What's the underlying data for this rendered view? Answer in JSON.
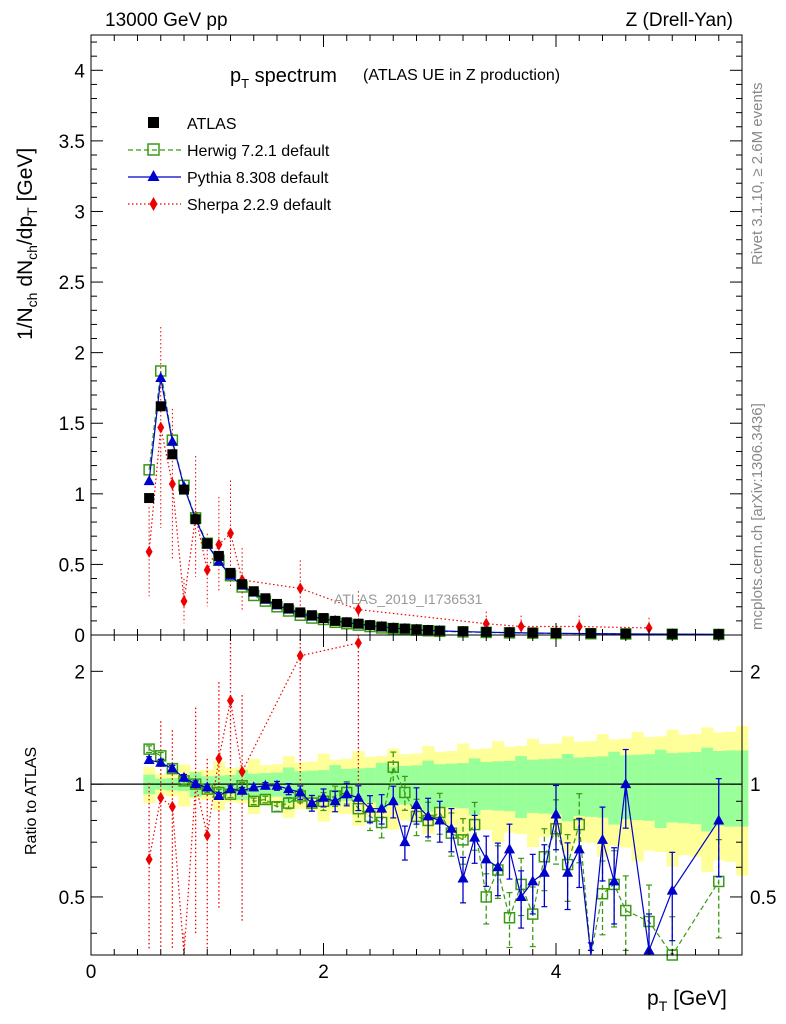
{
  "header": {
    "left": "13000 GeV pp",
    "right": "Z (Drell-Yan)"
  },
  "title": {
    "main": "p",
    "main_sub": "T",
    "main_rest": " spectrum",
    "small": "(ATLAS UE in Z production)"
  },
  "side_text": {
    "rivet": "Rivet 3.1.10, ≥ 2.6M events",
    "mcplots": "mcplots.cern.ch [arXiv:1306.3436]"
  },
  "analysis_id": "ATLAS_2019_I1736531",
  "ylabel_main": {
    "p1": "1/N",
    "s1": "ch",
    "p2": " dN",
    "s2": "ch",
    "p3": "/dp",
    "s3": "T",
    "p4": " [GeV]"
  },
  "ylabel_ratio": "Ratio to ATLAS",
  "xlabel": {
    "p": "p",
    "s": "T",
    "rest": " [GeV]"
  },
  "legend": [
    {
      "name": "ATLAS"
    },
    {
      "name": "Herwig 7.2.1 default"
    },
    {
      "name": "Pythia 8.308 default"
    },
    {
      "name": "Sherpa 2.2.9 default"
    }
  ],
  "axis_ticks": {
    "main_y": [
      "0",
      "0.5",
      "1",
      "1.5",
      "2",
      "2.5",
      "3",
      "3.5",
      "4"
    ],
    "ratio_y": [
      "0.5",
      "1",
      "2"
    ],
    "x": [
      "0",
      "2",
      "4"
    ]
  },
  "chart_data": {
    "type": "line",
    "colors": {
      "ATLAS": "#000000",
      "Herwig": "#3a9a14",
      "Pythia": "#0000cc",
      "Sherpa": "#ee0000",
      "band_inner": "#99ff99",
      "band_outer": "#ffff99"
    },
    "main": {
      "xlim": [
        0,
        5.6
      ],
      "ylim": [
        0,
        4.25
      ],
      "series": [
        {
          "name": "ATLAS",
          "x": [
            0.5,
            0.6,
            0.7,
            0.8,
            0.9,
            1.0,
            1.1,
            1.2,
            1.3,
            1.4,
            1.5,
            1.6,
            1.7,
            1.8,
            1.9,
            2.0,
            2.1,
            2.2,
            2.3,
            2.4,
            2.5,
            2.6,
            2.7,
            2.8,
            2.9,
            3.0,
            3.2,
            3.4,
            3.6,
            3.8,
            4.0,
            4.3,
            4.6,
            5.0,
            5.4
          ],
          "y": [
            0.97,
            1.62,
            1.28,
            1.03,
            0.82,
            0.65,
            0.56,
            0.44,
            0.36,
            0.31,
            0.26,
            0.22,
            0.19,
            0.16,
            0.14,
            0.12,
            0.1,
            0.09,
            0.08,
            0.07,
            0.06,
            0.05,
            0.045,
            0.04,
            0.035,
            0.03,
            0.026,
            0.022,
            0.019,
            0.016,
            0.014,
            0.012,
            0.01,
            0.008,
            0.006
          ]
        },
        {
          "name": "Herwig 7.2.1 default",
          "x": [
            0.5,
            0.6,
            0.7,
            0.8,
            0.9,
            1.0,
            1.1,
            1.2,
            1.3,
            1.4,
            1.5,
            1.6,
            1.7,
            1.8,
            1.9,
            2.0,
            2.1,
            2.2,
            2.3,
            2.4,
            2.5,
            2.6,
            2.7,
            2.8,
            2.9,
            3.0,
            3.2,
            3.4,
            3.6,
            3.8,
            4.0,
            4.3,
            4.6,
            5.0,
            5.4
          ],
          "y": [
            1.17,
            1.87,
            1.38,
            1.06,
            0.83,
            0.65,
            0.53,
            0.42,
            0.34,
            0.28,
            0.24,
            0.2,
            0.17,
            0.14,
            0.12,
            0.11,
            0.09,
            0.08,
            0.07,
            0.06,
            0.05,
            0.045,
            0.04,
            0.035,
            0.03,
            0.026,
            0.022,
            0.018,
            0.015,
            0.013,
            0.011,
            0.009,
            0.007,
            0.005,
            0.004
          ]
        },
        {
          "name": "Pythia 8.308 default",
          "x": [
            0.5,
            0.6,
            0.7,
            0.8,
            0.9,
            1.0,
            1.1,
            1.2,
            1.3,
            1.4,
            1.5,
            1.6,
            1.7,
            1.8,
            1.9,
            2.0,
            2.1,
            2.2,
            2.3,
            2.4,
            2.5,
            2.6,
            2.7,
            2.8,
            2.9,
            3.0,
            3.2,
            3.4,
            3.6,
            3.8,
            4.0,
            4.3,
            4.6,
            5.0,
            5.4
          ],
          "y": [
            1.09,
            1.82,
            1.37,
            1.05,
            0.82,
            0.64,
            0.52,
            0.42,
            0.35,
            0.3,
            0.25,
            0.21,
            0.18,
            0.155,
            0.13,
            0.115,
            0.1,
            0.088,
            0.078,
            0.068,
            0.058,
            0.05,
            0.044,
            0.038,
            0.033,
            0.029,
            0.024,
            0.02,
            0.017,
            0.014,
            0.012,
            0.01,
            0.008,
            0.006,
            0.005
          ]
        },
        {
          "name": "Sherpa 2.2.9 default",
          "x": [
            0.5,
            0.6,
            0.7,
            0.8,
            0.9,
            1.0,
            1.1,
            1.2,
            1.3,
            1.8,
            2.3,
            3.4,
            3.7,
            4.2,
            4.8
          ],
          "y": [
            0.59,
            1.47,
            1.07,
            0.24,
            0.84,
            0.46,
            0.64,
            0.72,
            0.39,
            0.33,
            0.18,
            0.08,
            0.06,
            0.06,
            0.05
          ]
        }
      ]
    },
    "ratio": {
      "xlim": [
        0,
        5.6
      ],
      "ylim": [
        0.35,
        2.5
      ],
      "series": [
        {
          "name": "Herwig 7.2.1 default",
          "x": [
            0.5,
            0.6,
            0.7,
            0.8,
            0.9,
            1.0,
            1.1,
            1.2,
            1.3,
            1.4,
            1.5,
            1.6,
            1.7,
            1.8,
            1.9,
            2.0,
            2.1,
            2.2,
            2.3,
            2.4,
            2.5,
            2.6,
            2.7,
            2.8,
            2.9,
            3.0,
            3.1,
            3.2,
            3.3,
            3.4,
            3.5,
            3.6,
            3.7,
            3.8,
            3.9,
            4.0,
            4.1,
            4.2,
            4.3,
            4.4,
            4.5,
            4.6,
            4.8,
            5.0,
            5.4
          ],
          "y": [
            1.24,
            1.19,
            1.1,
            1.02,
            1.0,
            0.97,
            0.95,
            0.94,
            0.99,
            0.9,
            0.91,
            0.87,
            0.89,
            0.93,
            0.89,
            0.9,
            0.93,
            0.95,
            0.86,
            0.82,
            0.79,
            1.11,
            0.95,
            0.82,
            0.8,
            0.84,
            0.74,
            0.71,
            0.78,
            0.5,
            0.59,
            0.44,
            0.54,
            0.45,
            0.64,
            0.76,
            0.61,
            0.78,
            0.31,
            0.51,
            0.54,
            0.46,
            0.43,
            0.35,
            0.55
          ]
        },
        {
          "name": "Pythia 8.308 default",
          "x": [
            0.5,
            0.6,
            0.7,
            0.8,
            0.9,
            1.0,
            1.1,
            1.2,
            1.3,
            1.4,
            1.5,
            1.6,
            1.7,
            1.8,
            1.9,
            2.0,
            2.1,
            2.2,
            2.3,
            2.4,
            2.5,
            2.6,
            2.7,
            2.8,
            2.9,
            3.0,
            3.1,
            3.2,
            3.3,
            3.4,
            3.5,
            3.6,
            3.7,
            3.8,
            3.9,
            4.0,
            4.1,
            4.2,
            4.3,
            4.4,
            4.5,
            4.6,
            4.8,
            5.0,
            5.4
          ],
          "y": [
            1.16,
            1.14,
            1.1,
            1.04,
            1.0,
            0.98,
            0.93,
            0.97,
            0.96,
            0.98,
            0.99,
            0.99,
            0.97,
            0.95,
            0.89,
            0.92,
            0.9,
            0.94,
            0.92,
            0.86,
            0.86,
            0.9,
            0.7,
            0.88,
            0.82,
            0.8,
            0.76,
            0.56,
            0.72,
            0.63,
            0.6,
            0.67,
            0.5,
            0.55,
            0.58,
            0.83,
            0.58,
            0.67,
            0.31,
            0.71,
            0.55,
            1.0,
            0.36,
            0.52,
            0.8
          ]
        },
        {
          "name": "Sherpa 2.2.9 default",
          "x": [
            0.5,
            0.6,
            0.7,
            0.8,
            0.9,
            1.0,
            1.1,
            1.2,
            1.3,
            1.8,
            2.3
          ],
          "y": [
            0.63,
            0.92,
            0.87,
            0.25,
            1.0,
            0.73,
            1.17,
            1.67,
            1.08,
            2.2,
            2.38
          ]
        }
      ]
    }
  }
}
